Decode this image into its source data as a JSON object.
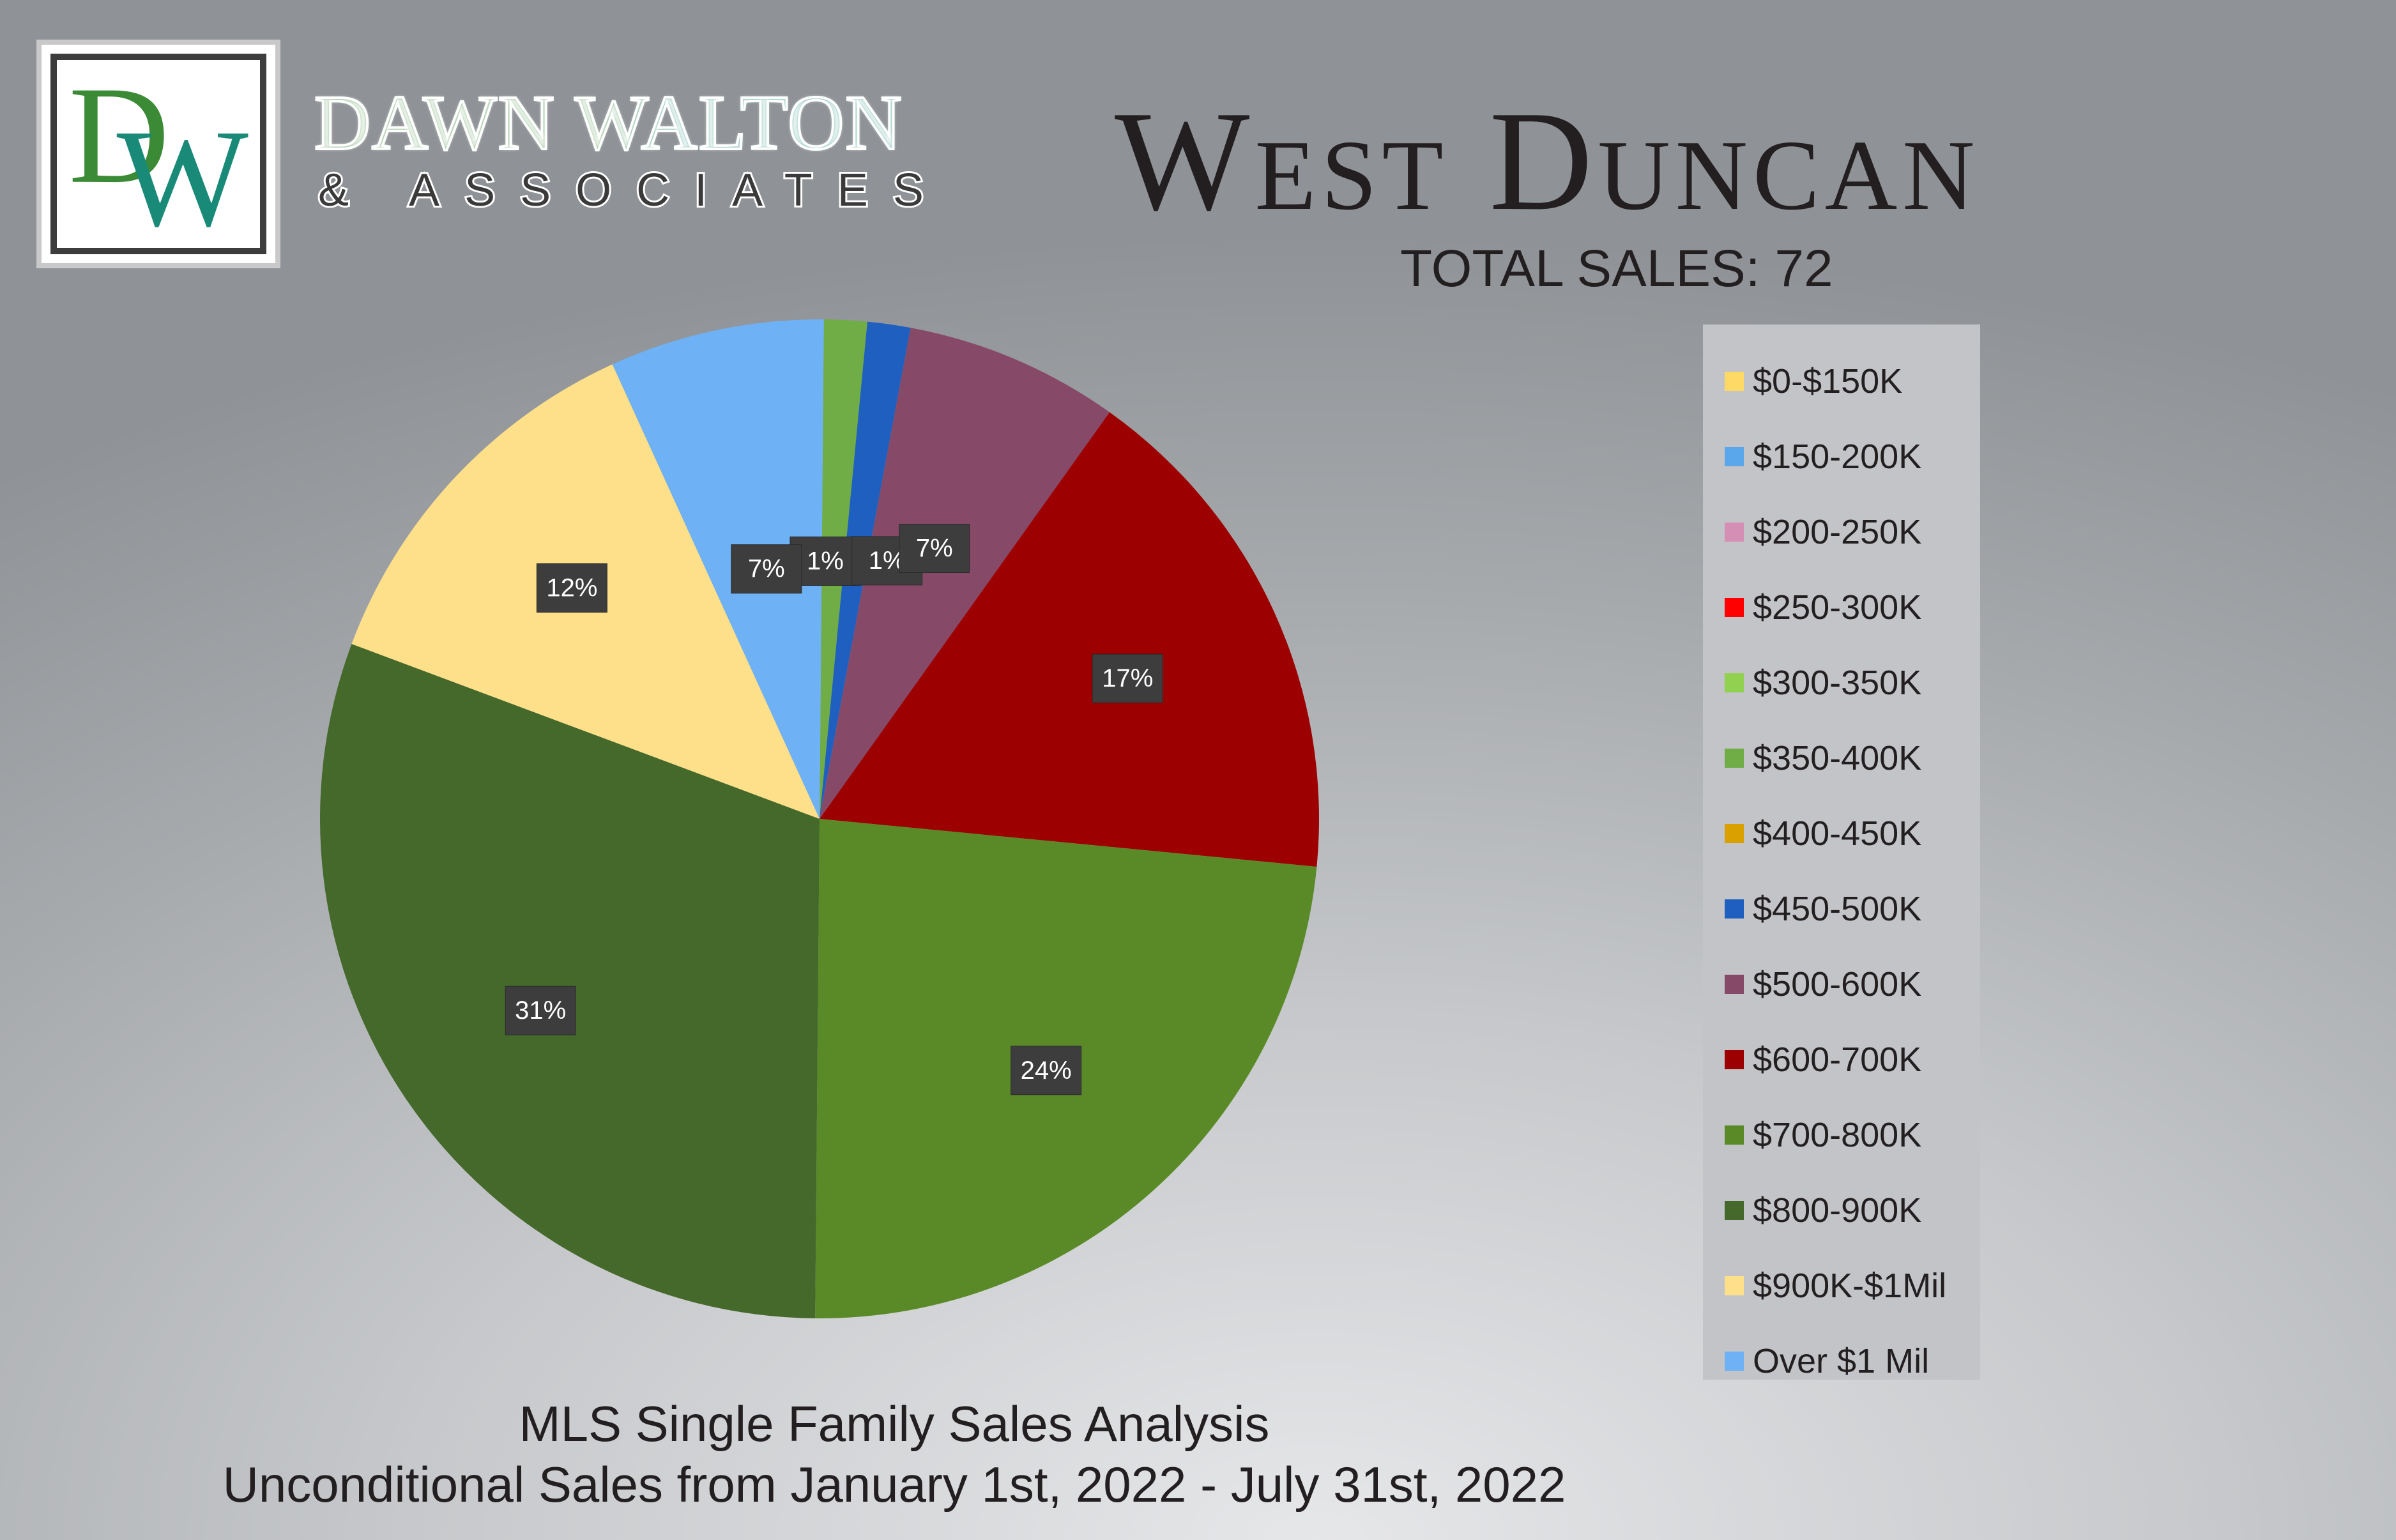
{
  "brand": {
    "logo_letters": "DW",
    "name": "DAWN WALTON",
    "sub": "& ASSOCIATES"
  },
  "title": "West Duncan",
  "total_sales": "TOTAL SALES: 72",
  "footer": {
    "line1": "MLS Single Family Sales Analysis",
    "line2": "Unconditional Sales from January 1st, 2022 - July 31st, 2022"
  },
  "colors": {
    "logo_green": "#3b8a35",
    "logo_teal": "#1a8a78",
    "label_box": "#3d3d3d"
  },
  "chart_data": {
    "type": "pie",
    "title": "West Duncan",
    "legend_position": "right",
    "categories": [
      "$0-$150K",
      "$150-200K",
      "$200-250K",
      "$250-300K",
      "$300-350K",
      "$350-400K",
      "$400-450K",
      "$450-500K",
      "$500-600K",
      "$600-700K",
      "$700-800K",
      "$800-900K",
      "$900K-$1Mil",
      "Over $1 Mil"
    ],
    "values": [
      0,
      0,
      0,
      0,
      0,
      1,
      0,
      1,
      5,
      12,
      17,
      22,
      9,
      5
    ],
    "labels": [
      "",
      "",
      "",
      "",
      "",
      "1%",
      "",
      "1%",
      "7%",
      "17%",
      "24%",
      "31%",
      "12%",
      "7%"
    ],
    "colors": [
      "#ffd966",
      "#5ba7ec",
      "#d68fb4",
      "#ff0000",
      "#92d050",
      "#70ad47",
      "#d9a000",
      "#1f5fbf",
      "#864a68",
      "#9c0000",
      "#5a8a28",
      "#44692b",
      "#ffe08a",
      "#6eb1f5"
    ]
  }
}
